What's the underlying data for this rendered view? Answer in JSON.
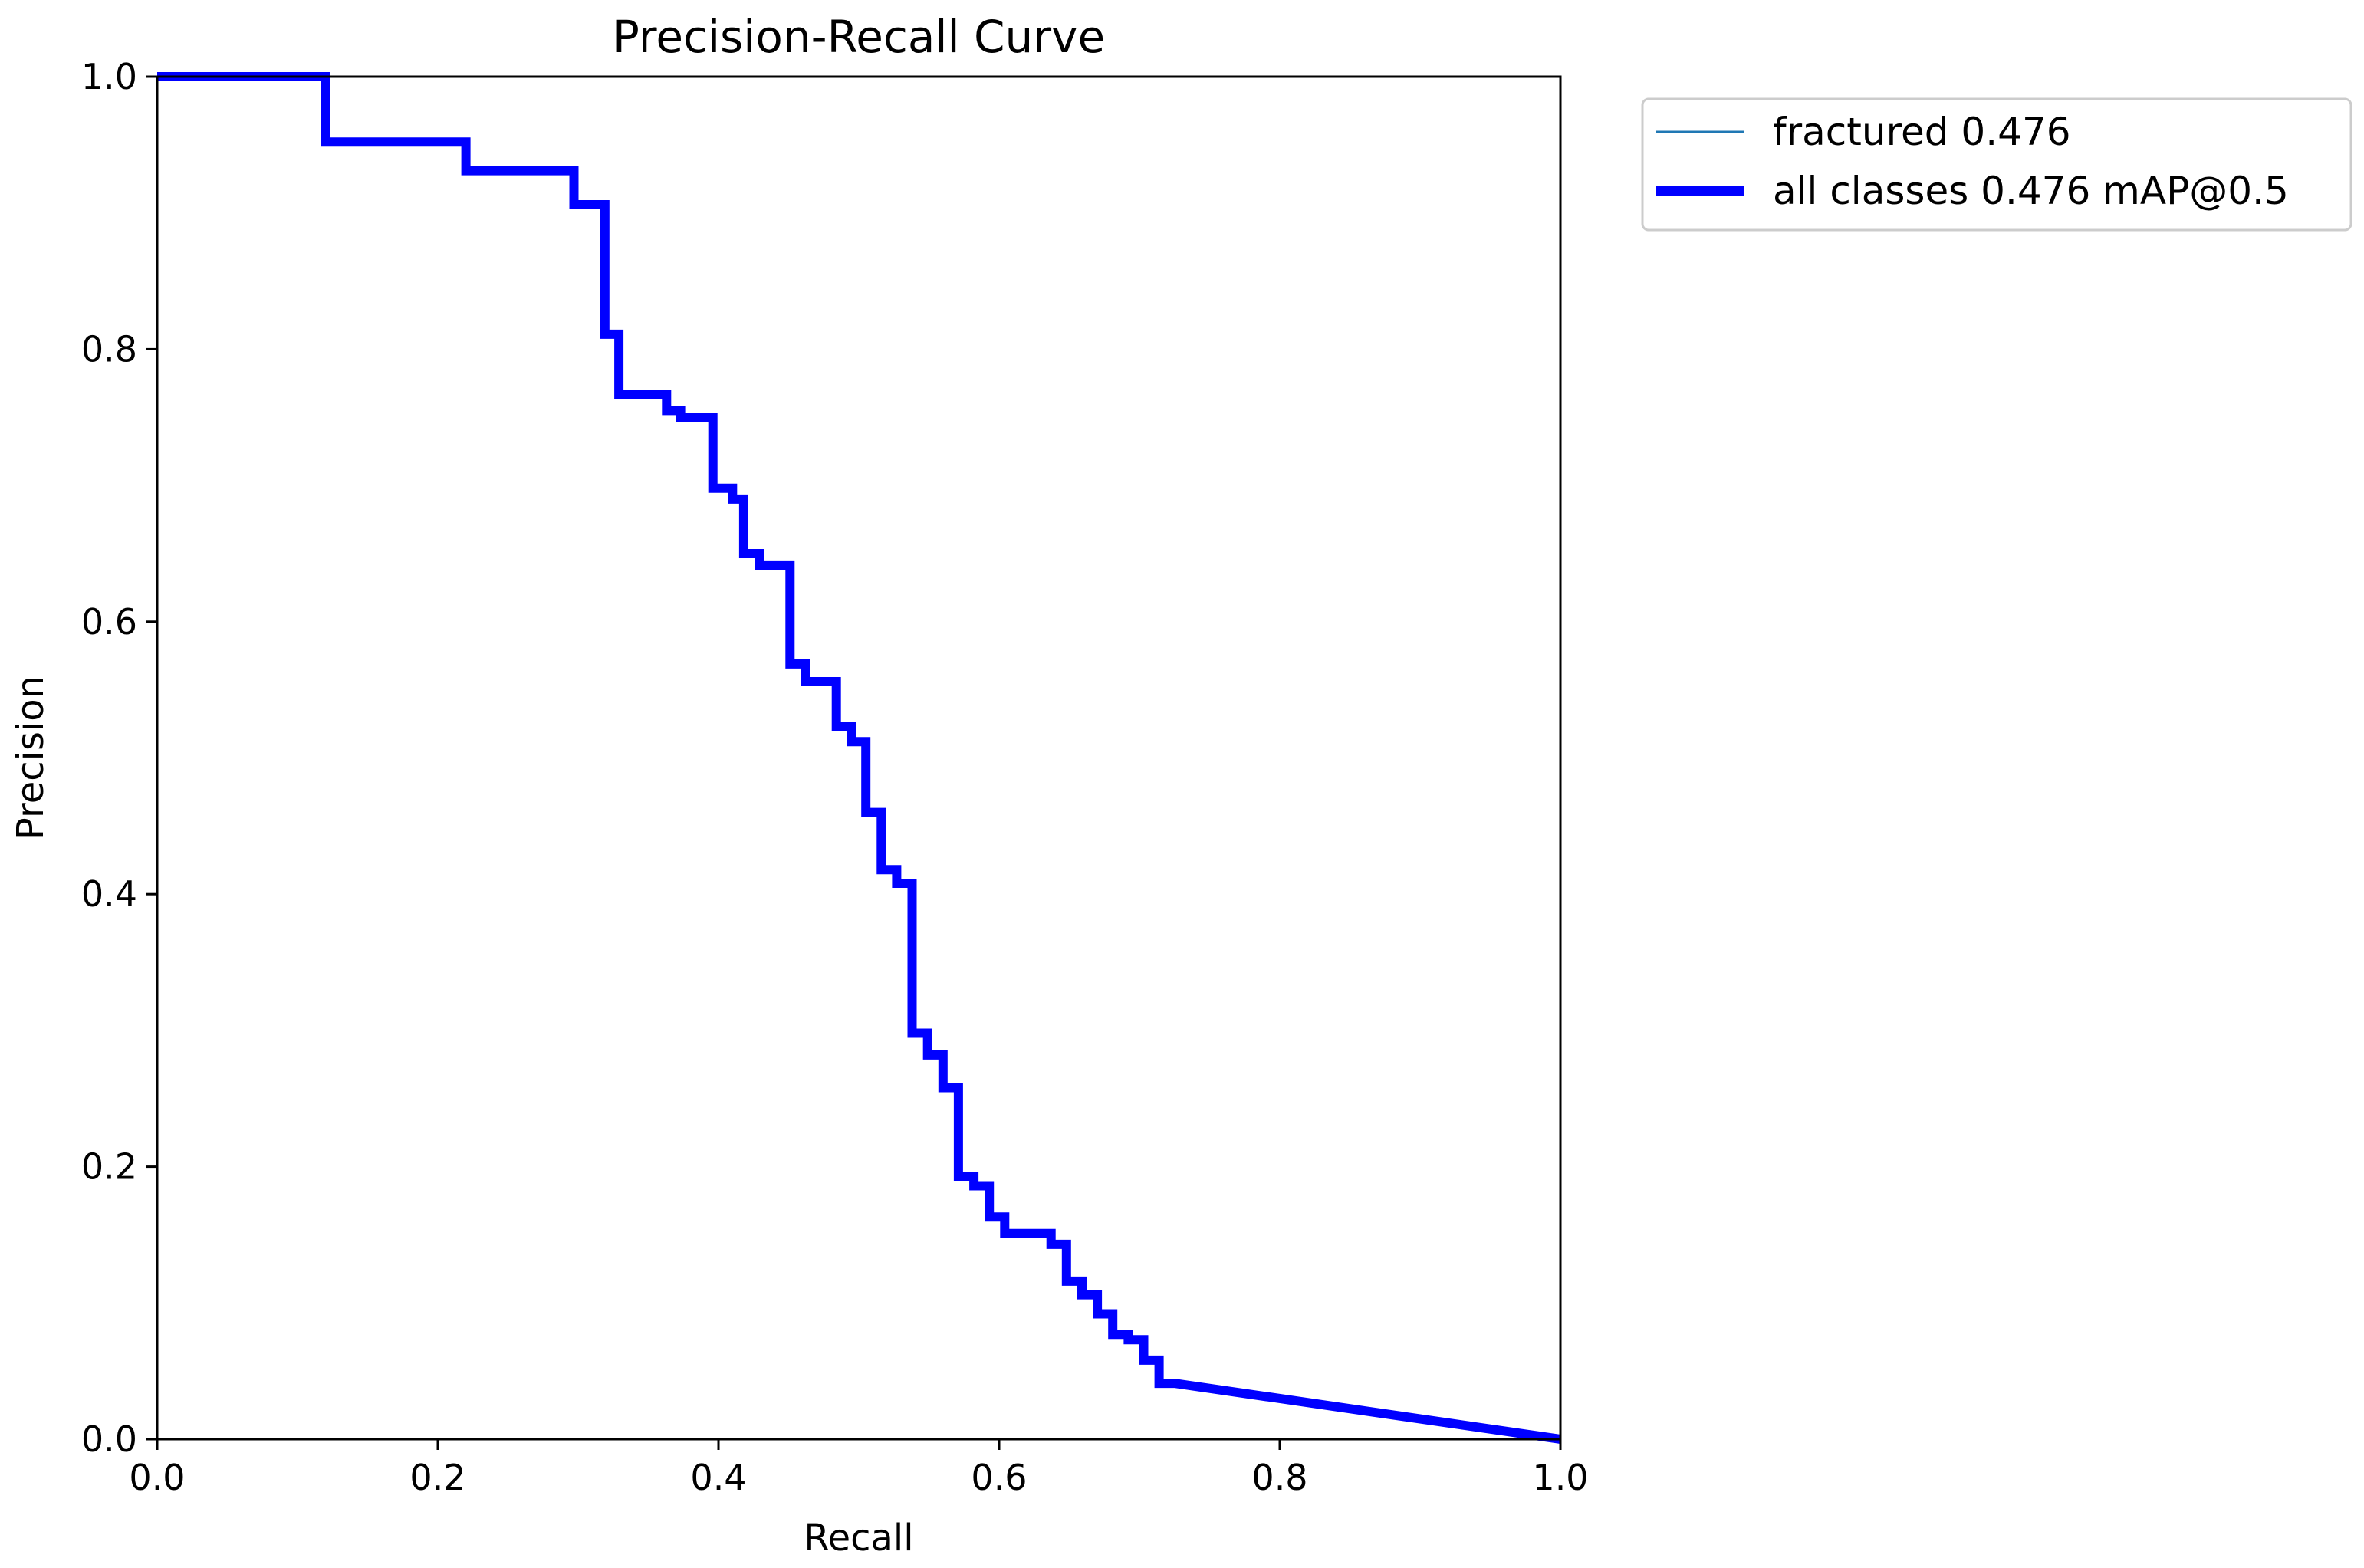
{
  "chart_data": {
    "type": "line",
    "title": "Precision-Recall Curve",
    "xlabel": "Recall",
    "ylabel": "Precision",
    "xlim": [
      0.0,
      1.0
    ],
    "ylim": [
      0.0,
      1.0
    ],
    "xticks": [
      "0.0",
      "0.2",
      "0.4",
      "0.6",
      "0.8",
      "1.0"
    ],
    "yticks": [
      "0.0",
      "0.2",
      "0.4",
      "0.6",
      "0.8",
      "1.0"
    ],
    "grid": false,
    "legend_position": "outside top-right",
    "series": [
      {
        "name": "fractured 0.476",
        "color": "#1f77b4",
        "linewidth": "thin",
        "x": [
          0.0,
          0.12,
          0.12,
          0.22,
          0.22,
          0.297,
          0.297,
          0.319,
          0.319,
          0.329,
          0.329,
          0.363,
          0.363,
          0.373,
          0.373,
          0.396,
          0.396,
          0.41,
          0.41,
          0.418,
          0.418,
          0.429,
          0.429,
          0.451,
          0.451,
          0.462,
          0.462,
          0.484,
          0.484,
          0.495,
          0.495,
          0.505,
          0.505,
          0.516,
          0.516,
          0.527,
          0.527,
          0.538,
          0.538,
          0.549,
          0.549,
          0.56,
          0.56,
          0.571,
          0.571,
          0.582,
          0.582,
          0.593,
          0.593,
          0.604,
          0.604,
          0.637,
          0.637,
          0.648,
          0.648,
          0.659,
          0.659,
          0.67,
          0.67,
          0.681,
          0.681,
          0.692,
          0.692,
          0.703,
          0.703,
          0.714,
          0.714,
          0.725,
          1.0
        ],
        "y": [
          1.0,
          1.0,
          0.952,
          0.952,
          0.931,
          0.931,
          0.906,
          0.906,
          0.811,
          0.811,
          0.767,
          0.767,
          0.755,
          0.755,
          0.75,
          0.75,
          0.698,
          0.698,
          0.69,
          0.69,
          0.65,
          0.65,
          0.641,
          0.641,
          0.569,
          0.569,
          0.556,
          0.556,
          0.523,
          0.523,
          0.512,
          0.512,
          0.46,
          0.46,
          0.418,
          0.418,
          0.408,
          0.408,
          0.298,
          0.298,
          0.282,
          0.282,
          0.258,
          0.258,
          0.193,
          0.193,
          0.186,
          0.186,
          0.163,
          0.163,
          0.151,
          0.151,
          0.143,
          0.143,
          0.116,
          0.116,
          0.106,
          0.106,
          0.092,
          0.092,
          0.077,
          0.077,
          0.073,
          0.073,
          0.058,
          0.058,
          0.041,
          0.041,
          0.0
        ]
      },
      {
        "name": "all classes 0.476 mAP@0.5",
        "color": "#0000ff",
        "linewidth": "thick",
        "x": [
          0.0,
          0.12,
          0.12,
          0.22,
          0.22,
          0.297,
          0.297,
          0.319,
          0.319,
          0.329,
          0.329,
          0.363,
          0.363,
          0.373,
          0.373,
          0.396,
          0.396,
          0.41,
          0.41,
          0.418,
          0.418,
          0.429,
          0.429,
          0.451,
          0.451,
          0.462,
          0.462,
          0.484,
          0.484,
          0.495,
          0.495,
          0.505,
          0.505,
          0.516,
          0.516,
          0.527,
          0.527,
          0.538,
          0.538,
          0.549,
          0.549,
          0.56,
          0.56,
          0.571,
          0.571,
          0.582,
          0.582,
          0.593,
          0.593,
          0.604,
          0.604,
          0.637,
          0.637,
          0.648,
          0.648,
          0.659,
          0.659,
          0.67,
          0.67,
          0.681,
          0.681,
          0.692,
          0.692,
          0.703,
          0.703,
          0.714,
          0.714,
          0.725,
          1.0
        ],
        "y": [
          1.0,
          1.0,
          0.952,
          0.952,
          0.931,
          0.931,
          0.906,
          0.906,
          0.811,
          0.811,
          0.767,
          0.767,
          0.755,
          0.755,
          0.75,
          0.75,
          0.698,
          0.698,
          0.69,
          0.69,
          0.65,
          0.65,
          0.641,
          0.641,
          0.569,
          0.569,
          0.556,
          0.556,
          0.523,
          0.523,
          0.512,
          0.512,
          0.46,
          0.46,
          0.418,
          0.418,
          0.408,
          0.408,
          0.298,
          0.298,
          0.282,
          0.282,
          0.258,
          0.258,
          0.193,
          0.193,
          0.186,
          0.186,
          0.163,
          0.163,
          0.151,
          0.151,
          0.143,
          0.143,
          0.116,
          0.116,
          0.106,
          0.106,
          0.092,
          0.092,
          0.077,
          0.077,
          0.073,
          0.073,
          0.058,
          0.058,
          0.041,
          0.041,
          0.0
        ]
      }
    ]
  }
}
